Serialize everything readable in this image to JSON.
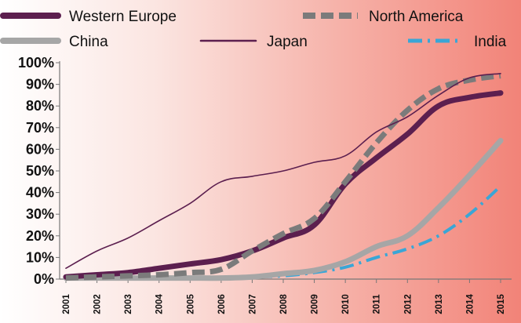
{
  "chart_data": {
    "type": "line",
    "title": "",
    "xlabel": "",
    "ylabel": "",
    "ylim": [
      0,
      100
    ],
    "y_tick_values": [
      0,
      10,
      20,
      30,
      40,
      50,
      60,
      70,
      80,
      90,
      100
    ],
    "y_tick_labels": [
      "0%",
      "10%",
      "20%",
      "30%",
      "40%",
      "50%",
      "60%",
      "70%",
      "80%",
      "90%",
      "100%"
    ],
    "x": [
      "2001",
      "2002",
      "2003",
      "2004",
      "2005",
      "2006",
      "2007",
      "2008",
      "2009",
      "2010",
      "2011",
      "2012",
      "2013",
      "2014",
      "2015"
    ],
    "grid": false,
    "legend_position": "top",
    "series": [
      {
        "name": "Western Europe",
        "color": "#5c1f4f",
        "style": "thick-solid",
        "values": [
          1,
          2,
          3,
          5,
          7,
          9,
          13,
          19,
          25,
          44,
          56,
          67,
          80,
          84,
          86
        ]
      },
      {
        "name": "North America",
        "color": "#7b7b7b",
        "style": "thick-dashed",
        "values": [
          0.5,
          1,
          1.5,
          2,
          3,
          4.5,
          13,
          21,
          28,
          45,
          63,
          78,
          88,
          92,
          94
        ]
      },
      {
        "name": "China",
        "color": "#a6a6a6",
        "style": "thick-solid",
        "values": [
          0.5,
          0.5,
          0.5,
          0.5,
          0.5,
          0.5,
          1,
          2.5,
          4,
          8,
          15,
          20,
          33,
          48,
          64
        ]
      },
      {
        "name": "Japan",
        "color": "#5c1f4f",
        "style": "thin-solid",
        "values": [
          5,
          13,
          19,
          27,
          35,
          45,
          47.5,
          50,
          54,
          57,
          68,
          75,
          85,
          93,
          95
        ]
      },
      {
        "name": "India",
        "color": "#3aa6d6",
        "style": "dash-dot",
        "values": [
          0.5,
          0.5,
          0.5,
          0.5,
          0.5,
          0.5,
          1,
          1.5,
          3,
          5.5,
          10,
          14,
          20,
          30,
          43
        ]
      }
    ]
  }
}
